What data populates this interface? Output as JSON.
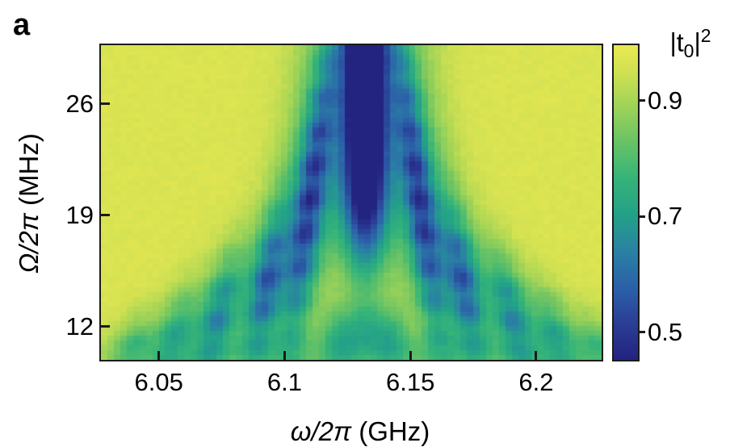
{
  "figure": {
    "panel_label": "a",
    "background_color": "#ffffff",
    "axis_color": "#1b1b1b",
    "text_color": "#000000"
  },
  "chart_data": {
    "type": "heatmap",
    "title": "",
    "panel_label": "a",
    "xlabel": {
      "math": "ω/2π",
      "unit": " (GHz)"
    },
    "ylabel": {
      "math": "Ω/2π",
      "unit": " (MHz)"
    },
    "colorbar_label": {
      "pre": "|t",
      "sub": "0",
      "post": "|",
      "sup": "2"
    },
    "x_range": [
      6.027,
      6.226
    ],
    "y_range": [
      9.9,
      29.7
    ],
    "x_ticks": [
      6.05,
      6.1,
      6.15,
      6.2
    ],
    "x_tick_labels": [
      "6.05",
      "6.1",
      "6.15",
      "6.2"
    ],
    "y_ticks": [
      26,
      19,
      12
    ],
    "y_tick_labels": [
      "26",
      "19",
      "12"
    ],
    "colorbar_ticks": [
      0.9,
      0.7,
      0.5
    ],
    "colorbar_tick_labels": [
      "0.9",
      "0.7",
      "0.5"
    ],
    "value_range": [
      0.452,
      0.996
    ],
    "background_value": 0.968,
    "center_frequency_ghz": 6.132,
    "grid": {
      "cols": 78,
      "rows": 65
    },
    "colormap": [
      [
        0.0,
        "#232380"
      ],
      [
        0.1,
        "#2a3a92"
      ],
      [
        0.22,
        "#2b5ea8"
      ],
      [
        0.34,
        "#2a80a4"
      ],
      [
        0.46,
        "#23a189"
      ],
      [
        0.58,
        "#36b478"
      ],
      [
        0.7,
        "#6cc464"
      ],
      [
        0.82,
        "#a5d556"
      ],
      [
        0.91,
        "#cfe052"
      ],
      [
        1.0,
        "#e9e951"
      ]
    ],
    "model": {
      "center": {
        "amp": 0.55,
        "sigma": 0.006,
        "halo_amp": 0.18,
        "halo_sigma": 0.016,
        "onset": 17.2,
        "onset_width": 2.0
      },
      "branches": [
        {
          "offset_top": 0.014,
          "offset_bottom": 0.03,
          "amp": 0.3,
          "mu": 20.0,
          "tau": 6.5,
          "sigma": 0.0042
        },
        {
          "offset_top": 0.024,
          "offset_bottom": 0.044,
          "amp": 0.26,
          "mu": 14.8,
          "tau": 3.4,
          "sigma": 0.0044
        },
        {
          "offset_top": 0.036,
          "offset_bottom": 0.062,
          "amp": 0.21,
          "mu": 12.8,
          "tau": 2.6,
          "sigma": 0.0046
        },
        {
          "offset_top": 0.048,
          "offset_bottom": 0.078,
          "amp": 0.15,
          "mu": 11.4,
          "tau": 2.0,
          "sigma": 0.0048
        },
        {
          "offset_top": 0.06,
          "offset_bottom": 0.094,
          "amp": 0.11,
          "mu": 10.5,
          "tau": 1.6,
          "sigma": 0.005
        }
      ],
      "branch_halo": {
        "rel_amp": 0.45,
        "sigma": 0.01
      },
      "low_features": [
        {
          "offset": 0.01,
          "amp": 0.17,
          "mu": 11.3,
          "tau": 1.4,
          "sigma": 0.0055
        },
        {
          "offset": 0.0,
          "amp": 0.12,
          "mu": 11.9,
          "tau": 1.2,
          "sigma": 0.005
        }
      ],
      "bottom_haze": {
        "amp": 0.095,
        "mu": 10.15,
        "tau": 0.95,
        "sigma_omega": 0.075
      },
      "bead": {
        "amp": 0.3,
        "freq": 2.9,
        "phase": 1.7
      },
      "noise": 0.009,
      "seed": 7
    },
    "description": "Transmission |t0|^2 of a driven qubit versus probe frequency ω/2π and Rabi frequency Ω/2π. A deep blue resonance dip at 6.132 GHz at high Ω branches into a fan of beaded sideband dips that spread outward as Ω decreases, fading into a light green haze near Ω ≈ 10 MHz."
  }
}
